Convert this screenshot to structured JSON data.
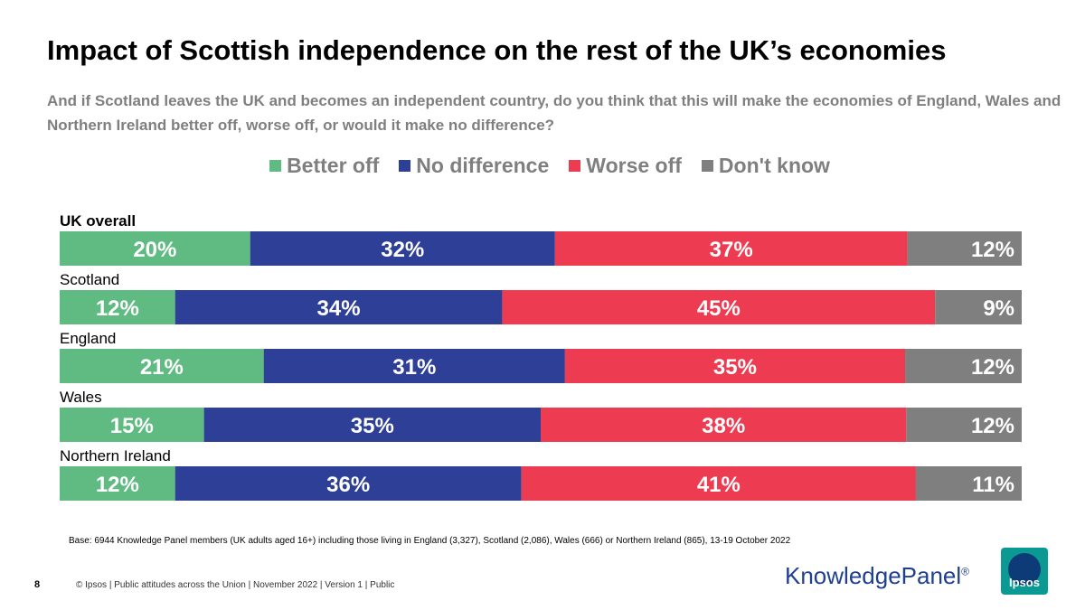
{
  "title": "Impact of Scottish independence on the rest of the UK’s economies",
  "subtitle": "And if Scotland leaves the UK and becomes an independent country, do you think that this will make the economies of England, Wales and Northern Ireland better off, worse off, or would it make no difference?",
  "chart_data": {
    "type": "bar",
    "orientation": "horizontal",
    "stacked": true,
    "categories": [
      "UK overall",
      "Scotland",
      "England",
      "Wales",
      "Northern Ireland"
    ],
    "series": [
      {
        "name": "Better off",
        "color": "#5fbb82",
        "values": [
          20,
          12,
          21,
          15,
          12
        ]
      },
      {
        "name": "No difference",
        "color": "#2e3f97",
        "values": [
          32,
          34,
          31,
          35,
          36
        ]
      },
      {
        "name": "Worse off",
        "color": "#ed3c52",
        "values": [
          37,
          45,
          35,
          38,
          41
        ]
      },
      {
        "name": "Don't know",
        "color": "#7f7f7f",
        "values": [
          12,
          9,
          12,
          12,
          11
        ]
      }
    ],
    "value_suffix": "%",
    "legend": "top-center",
    "grid": false
  },
  "base_note": "Base: 6944 Knowledge Panel members (UK adults aged 16+) including those living in England (3,327), Scotland (2,086), Wales (666) or Northern Ireland (865), 13-19 October 2022",
  "footer": {
    "page_number": "8",
    "text": "© Ipsos | Public attitudes across the Union | November 2022 | Version 1 | Public"
  },
  "logos": {
    "knowledge_panel": "KnowledgePanel",
    "registered_mark": "®",
    "ipsos": "Ipsos"
  }
}
